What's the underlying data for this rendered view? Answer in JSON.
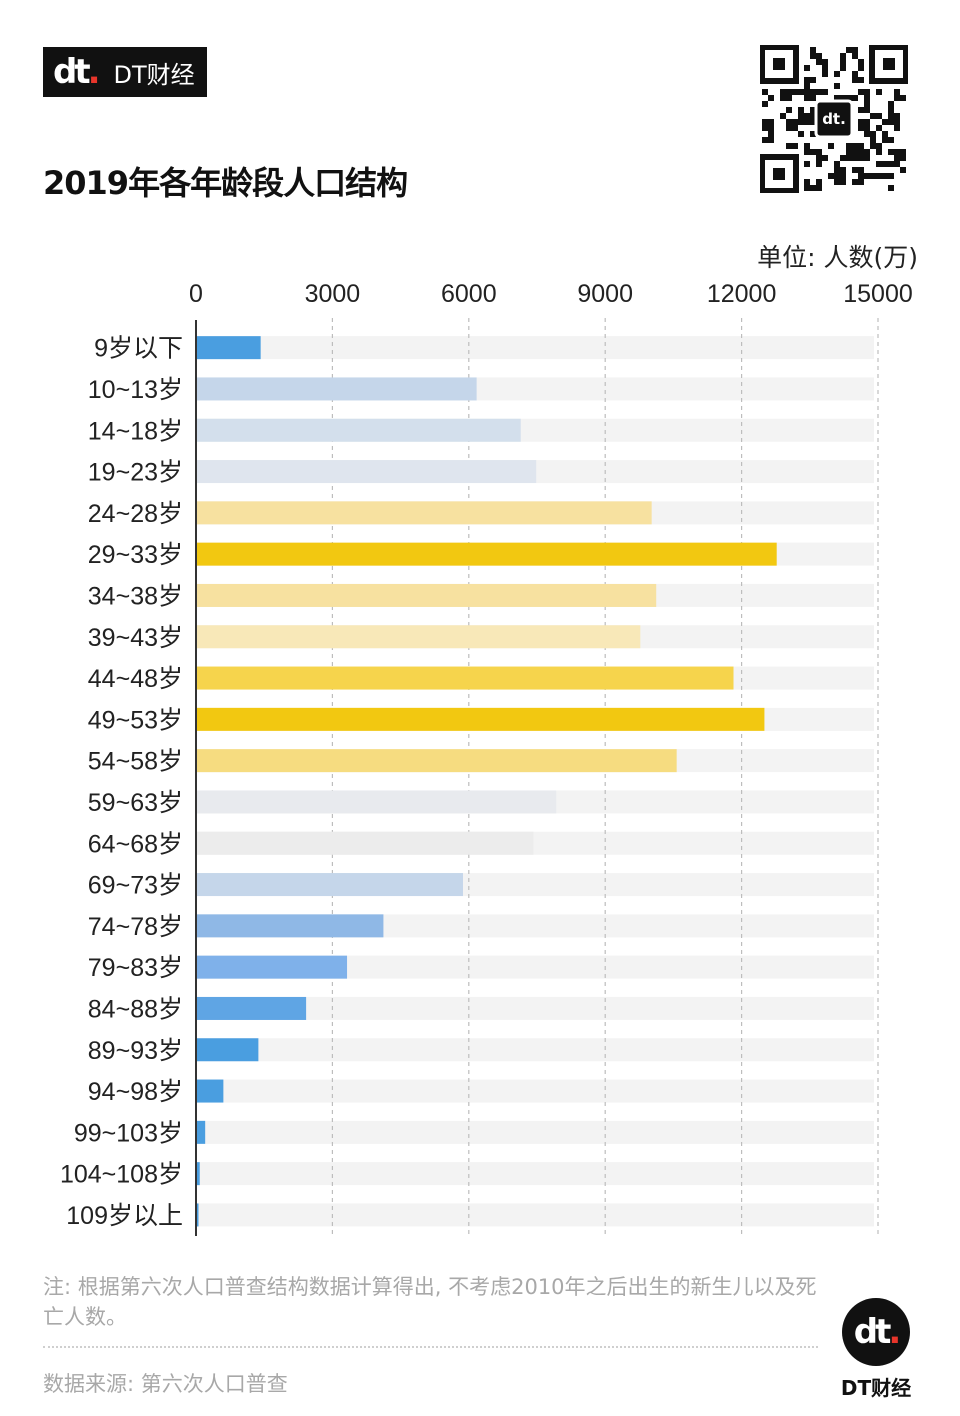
{
  "brand": {
    "logo": "dt",
    "name": "DT财经"
  },
  "title": "2019年各年龄段人口结构",
  "unit_label": "单位: 人数(万)",
  "note": "注: 根据第六次人口普查结构数据计算得出, 不考虑2010年之后出生的新生儿以及死亡人数。",
  "source": "数据来源: 第六次人口普查",
  "footer": {
    "logo": "dt",
    "name": "DT财经"
  },
  "colors": {
    "blue_strong": "#4a9ee0",
    "blue_mid": "#8fb8e6",
    "blue_light": "#c5d6ea",
    "blue_pale": "#dfe5ee",
    "gray_pale": "#ececec",
    "yellow_strong": "#f2c811",
    "yellow_mid": "#f6d44c",
    "yellow_light": "#f7e1a0",
    "track": "#f3f3f3"
  },
  "chart_data": {
    "type": "bar",
    "orientation": "horizontal",
    "title": "2019年各年龄段人口结构",
    "xlabel": "单位: 人数(万)",
    "ylabel": "",
    "xlim": [
      0,
      15000
    ],
    "ticks": [
      "0",
      "3000",
      "6000",
      "9000",
      "12000",
      "15000"
    ],
    "tick_values": [
      0,
      3000,
      6000,
      9000,
      12000,
      15000
    ],
    "categories": [
      "9岁以下",
      "10~13岁",
      "14~18岁",
      "19~23岁",
      "24~28岁",
      "29~33岁",
      "34~38岁",
      "39~43岁",
      "44~48岁",
      "49~53岁",
      "54~58岁",
      "59~63岁",
      "64~68岁",
      "69~73岁",
      "74~78岁",
      "79~83岁",
      "84~88岁",
      "89~93岁",
      "94~98岁",
      "99~103岁",
      "104~108岁",
      "109岁以上"
    ],
    "values": [
      1400,
      6150,
      7120,
      7460,
      10000,
      12750,
      10100,
      9750,
      11800,
      12480,
      10550,
      7900,
      7400,
      5850,
      4100,
      3300,
      2400,
      1350,
      580,
      180,
      60,
      20
    ],
    "bar_colors": [
      "#4a9ee0",
      "#c5d6ea",
      "#d3dfec",
      "#dfe5ee",
      "#f7e1a0",
      "#f2c811",
      "#f7e1a0",
      "#f8e8b8",
      "#f6d44c",
      "#f2c811",
      "#f6dc80",
      "#e8eaee",
      "#ececec",
      "#c5d6ea",
      "#8fb8e6",
      "#7fb1ea",
      "#5fa5e4",
      "#4a9ee0",
      "#4a9ee0",
      "#4a9ee0",
      "#4a9ee0",
      "#4a9ee0"
    ],
    "grid": true
  }
}
